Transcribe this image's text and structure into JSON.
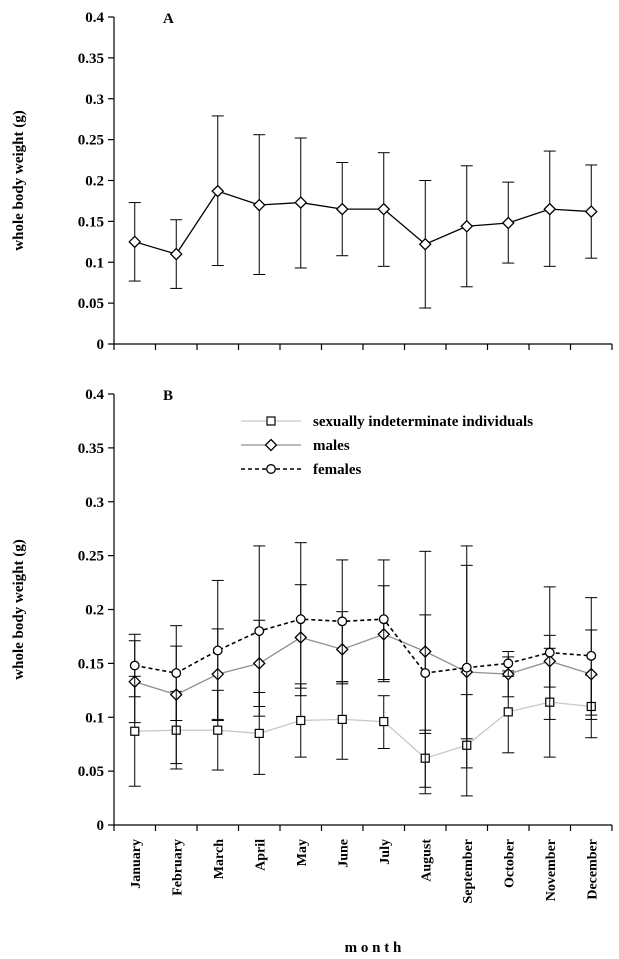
{
  "chart_data": [
    {
      "panel": "A",
      "type": "line",
      "panel_label": "A",
      "ylabel": "whole body weight  (g)",
      "xlabel": "",
      "ylim": [
        0,
        0.4
      ],
      "y_ticks": [
        "0",
        "0.05",
        "0.1",
        "0.15",
        "0.2",
        "0.25",
        "0.3",
        "0.35",
        "0.4"
      ],
      "categories": [
        "January",
        "February",
        "March",
        "April",
        "May",
        "June",
        "July",
        "August",
        "September",
        "October",
        "November",
        "December"
      ],
      "tick_labels_visible": false,
      "grid": false,
      "series": [
        {
          "marker": "diamond",
          "color": "#000000",
          "dash": "solid",
          "values": [
            0.125,
            0.11,
            0.187,
            0.17,
            0.173,
            0.165,
            0.165,
            0.122,
            0.144,
            0.148,
            0.165,
            0.162
          ],
          "err_low": [
            0.077,
            0.068,
            0.096,
            0.085,
            0.093,
            0.108,
            0.095,
            0.044,
            0.07,
            0.099,
            0.095,
            0.105
          ],
          "err_high": [
            0.173,
            0.152,
            0.279,
            0.256,
            0.252,
            0.222,
            0.234,
            0.2,
            0.218,
            0.198,
            0.236,
            0.219
          ]
        }
      ]
    },
    {
      "panel": "B",
      "type": "line",
      "panel_label": "B",
      "ylabel": "whole body weight  (g)",
      "xlabel": "m o n t h",
      "ylim": [
        0,
        0.4
      ],
      "y_ticks": [
        "0",
        "0.05",
        "0.1",
        "0.15",
        "0.2",
        "0.25",
        "0.3",
        "0.35",
        "0.4"
      ],
      "categories": [
        "January",
        "February",
        "March",
        "April",
        "May",
        "June",
        "July",
        "August",
        "September",
        "October",
        "November",
        "December"
      ],
      "tick_labels_visible": true,
      "grid": false,
      "legend_position": "top-right",
      "series": [
        {
          "name": "sexually indeterminate individuals",
          "marker": "square",
          "color": "#c8c8c8",
          "dash": "solid",
          "values": [
            0.087,
            0.088,
            0.088,
            0.085,
            0.097,
            0.098,
            0.096,
            0.062,
            0.074,
            0.105,
            0.114,
            0.11
          ],
          "err_low": [
            0.036,
            0.052,
            0.051,
            0.047,
            0.063,
            0.061,
            0.071,
            0.035,
            0.027,
            0.067,
            0.063,
            0.081
          ],
          "err_high": [
            0.138,
            0.124,
            0.125,
            0.123,
            0.131,
            0.133,
            0.12,
            0.088,
            0.121,
            0.143,
            0.164,
            0.139
          ]
        },
        {
          "name": "males",
          "marker": "diamond",
          "color": "#909090",
          "dash": "solid",
          "values": [
            0.133,
            0.121,
            0.14,
            0.15,
            0.174,
            0.163,
            0.177,
            0.161,
            0.142,
            0.14,
            0.152,
            0.14
          ],
          "err_low": [
            0.095,
            0.057,
            0.098,
            0.11,
            0.127,
            0.131,
            0.133,
            0.085,
            0.053,
            0.119,
            0.128,
            0.098
          ],
          "err_high": [
            0.171,
            0.166,
            0.182,
            0.19,
            0.223,
            0.198,
            0.222,
            0.195,
            0.241,
            0.156,
            0.176,
            0.181
          ]
        },
        {
          "name": "females",
          "marker": "circle",
          "color": "#000000",
          "dash": "dashed",
          "values": [
            0.148,
            0.141,
            0.162,
            0.18,
            0.191,
            0.189,
            0.191,
            0.141,
            0.146,
            0.15,
            0.16,
            0.157
          ],
          "err_low": [
            0.119,
            0.097,
            0.097,
            0.101,
            0.12,
            0.133,
            0.135,
            0.029,
            0.08,
            0.138,
            0.098,
            0.102
          ],
          "err_high": [
            0.177,
            0.185,
            0.227,
            0.259,
            0.262,
            0.246,
            0.246,
            0.254,
            0.259,
            0.161,
            0.221,
            0.211
          ]
        }
      ]
    }
  ]
}
